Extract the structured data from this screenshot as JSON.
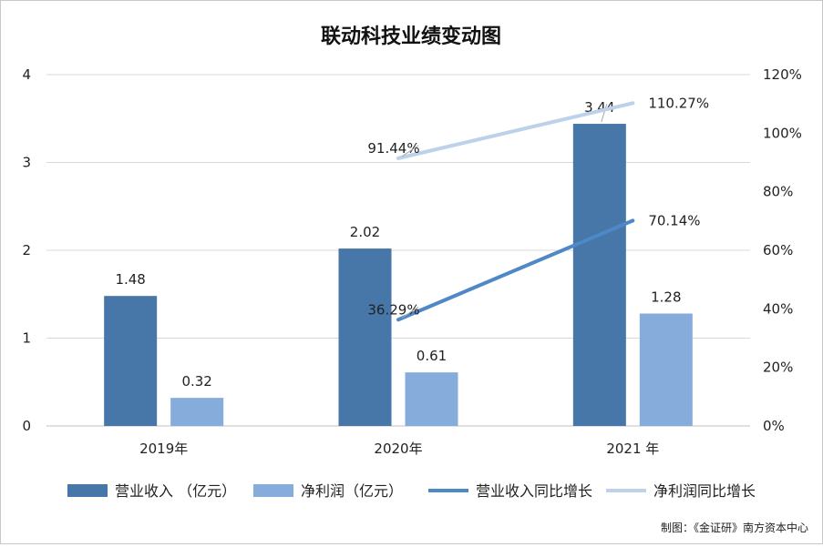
{
  "chart_data": {
    "type": "bar",
    "title": "联动科技业绩变动图",
    "categories": [
      "2019年",
      "2020年",
      "2021 年"
    ],
    "series": [
      {
        "name": "营业收入 （亿元）",
        "kind": "bar",
        "axis": "left",
        "color": "#4677a8",
        "values": [
          1.48,
          2.02,
          3.44
        ],
        "labels": [
          "1.48",
          "2.02",
          "3.44"
        ]
      },
      {
        "name": "净利润（亿元）",
        "kind": "bar",
        "axis": "left",
        "color": "#86acdb",
        "values": [
          0.32,
          0.61,
          1.28
        ],
        "labels": [
          "0.32",
          "0.61",
          "1.28"
        ]
      },
      {
        "name": "营业收入同比增长",
        "kind": "line",
        "axis": "right",
        "color": "#4f88c6",
        "values": [
          null,
          36.29,
          70.14
        ],
        "labels": [
          "",
          "36.29%",
          "70.14%"
        ]
      },
      {
        "name": "净利润同比增长",
        "kind": "line",
        "axis": "right",
        "color": "#bcd1ea",
        "values": [
          null,
          91.44,
          110.27
        ],
        "labels": [
          "",
          "91.44%",
          "110.27%"
        ]
      }
    ],
    "y_left": {
      "min": 0,
      "max": 4,
      "ticks": [
        "0",
        "1",
        "2",
        "3",
        "4"
      ]
    },
    "y_right": {
      "min": 0,
      "max": 120,
      "ticks": [
        "0%",
        "20%",
        "40%",
        "60%",
        "80%",
        "100%",
        "120%"
      ]
    },
    "grid": true,
    "legend_position": "bottom"
  },
  "source_note": "制图：《金证研》南方资本中心"
}
